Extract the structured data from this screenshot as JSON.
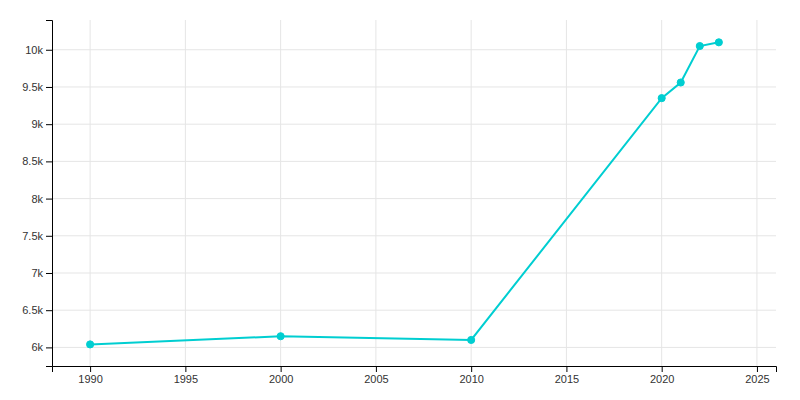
{
  "chart_data": {
    "type": "line",
    "x": [
      1990,
      2000,
      2010,
      2020,
      2021,
      2022,
      2023
    ],
    "values": [
      6040,
      6150,
      6100,
      9350,
      9560,
      10050,
      10100
    ],
    "color": "#00CED1",
    "marker": "circle",
    "xlim": [
      1988,
      2026
    ],
    "ylim": [
      5750,
      10400
    ],
    "xticks": [
      1990,
      1995,
      2000,
      2005,
      2010,
      2015,
      2020,
      2025
    ],
    "yticks": [
      {
        "value": 6000,
        "label": "6k"
      },
      {
        "value": 6500,
        "label": "6.5k"
      },
      {
        "value": 7000,
        "label": "7k"
      },
      {
        "value": 7500,
        "label": "7.5k"
      },
      {
        "value": 8000,
        "label": "8k"
      },
      {
        "value": 8500,
        "label": "8.5k"
      },
      {
        "value": 9000,
        "label": "9k"
      },
      {
        "value": 9500,
        "label": "9.5k"
      },
      {
        "value": 10000,
        "label": "10k"
      }
    ],
    "grid": true
  }
}
